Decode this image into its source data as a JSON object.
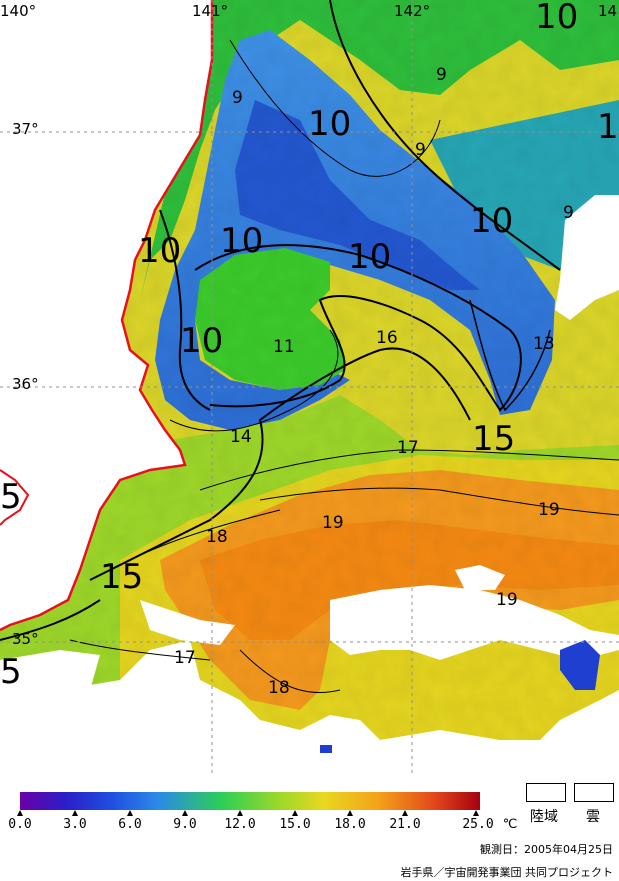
{
  "map": {
    "lon_labels": [
      "140°",
      "141°",
      "142°",
      "14"
    ],
    "lat_labels": [
      "37°",
      "36°",
      "35°"
    ],
    "contour_labels": [
      {
        "text": "10",
        "big": true
      },
      {
        "text": "9",
        "big": false
      },
      {
        "text": "9",
        "big": false
      },
      {
        "text": "10",
        "big": true
      },
      {
        "text": "9",
        "big": false
      },
      {
        "text": "10",
        "big": true
      },
      {
        "text": "10",
        "big": true
      },
      {
        "text": "10",
        "big": true
      },
      {
        "text": "10",
        "big": true
      },
      {
        "text": "9",
        "big": false
      },
      {
        "text": "10",
        "big": true
      },
      {
        "text": "11",
        "big": false
      },
      {
        "text": "16",
        "big": false
      },
      {
        "text": "13",
        "big": false
      },
      {
        "text": "14",
        "big": false
      },
      {
        "text": "15",
        "big": true
      },
      {
        "text": "17",
        "big": false
      },
      {
        "text": "5",
        "big": true
      },
      {
        "text": "19",
        "big": false
      },
      {
        "text": "19",
        "big": false
      },
      {
        "text": "18",
        "big": false
      },
      {
        "text": "15",
        "big": true
      },
      {
        "text": "19",
        "big": false
      },
      {
        "text": "17",
        "big": false
      },
      {
        "text": "18",
        "big": false
      },
      {
        "text": "5",
        "big": true
      },
      {
        "text": "1",
        "big": true
      }
    ]
  },
  "legend": {
    "ticks": [
      "0.0",
      "3.0",
      "6.0",
      "9.0",
      "12.0",
      "15.0",
      "18.0",
      "21.0",
      "25.0"
    ],
    "unit": "℃",
    "land_label": "陸域",
    "cloud_label": "雲"
  },
  "footer": {
    "observation_date": "観測日：2005年04月25日",
    "credit": "岩手県／宇宙開発事業団 共同プロジェクト"
  },
  "colors": {
    "coastline": "#e8101c",
    "land": "#ffffff",
    "cloud": "#ffffff",
    "grid": "#909090",
    "contour": "#000000"
  }
}
